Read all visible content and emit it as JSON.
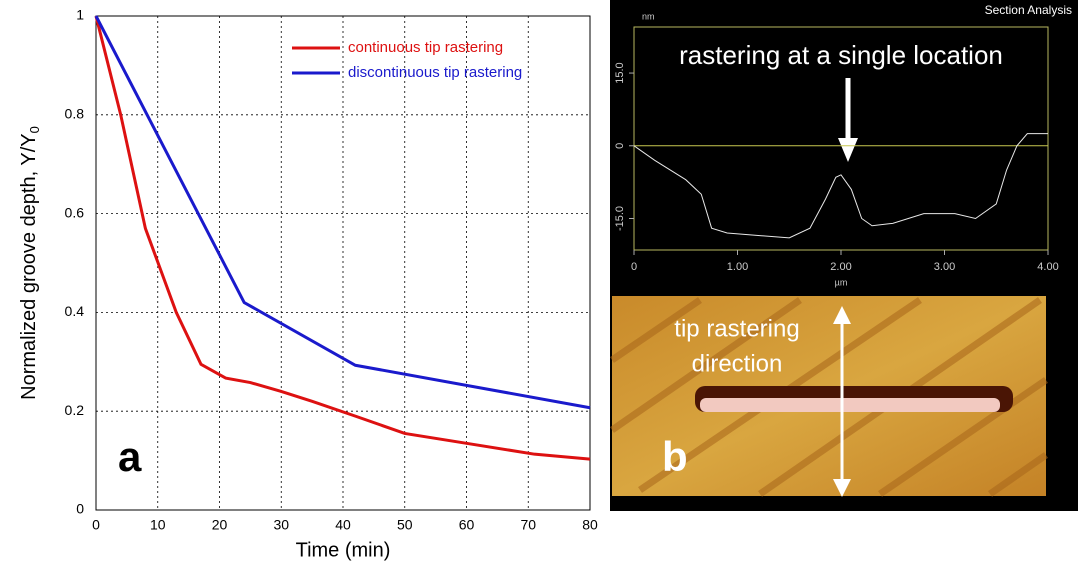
{
  "chart_data": [
    {
      "type": "line",
      "panel_label": "a",
      "xlabel": "Time (min)",
      "ylabel": "Normalized groove depth, Y/Y",
      "ylabel_subscript": "0",
      "xlim": [
        0,
        80
      ],
      "ylim": [
        0,
        1
      ],
      "xticks": [
        0,
        10,
        20,
        30,
        40,
        50,
        60,
        70,
        80
      ],
      "yticks": [
        0,
        0.2,
        0.4,
        0.6,
        0.8,
        1
      ],
      "grid": true,
      "legend": "upper right",
      "series": [
        {
          "name": "continuous tip rastering",
          "color": "#dd1111",
          "x": [
            0,
            4,
            8,
            13,
            17,
            21,
            25,
            30,
            35,
            42,
            50,
            60,
            71,
            80
          ],
          "values": [
            1,
            0.8,
            0.57,
            0.4,
            0.295,
            0.267,
            0.258,
            0.24,
            0.22,
            0.19,
            0.155,
            0.135,
            0.113,
            0.103
          ]
        },
        {
          "name": "discontinuous tip rastering",
          "color": "#1a1acc",
          "x": [
            0,
            24,
            42,
            80
          ],
          "values": [
            1,
            0.42,
            0.293,
            0.207
          ]
        }
      ]
    },
    {
      "type": "profile",
      "title": "Section Analysis",
      "ylabel": "nm",
      "xlabel": "µm",
      "annotation": "rastering at a single location",
      "xlim": [
        0,
        4
      ],
      "ylim": [
        -21.5,
        24.5
      ],
      "xticks": [
        0,
        {
          "value": 1,
          "label": "1.00"
        },
        {
          "value": 2,
          "label": "2.00"
        },
        {
          "value": 3,
          "label": "3.00"
        },
        {
          "value": 4,
          "label": "4.00"
        }
      ],
      "yticks": [
        {
          "value": -15,
          "label": "-15.0"
        },
        0,
        {
          "value": 15,
          "label": "15.0"
        }
      ],
      "color": "#e8e8e8",
      "x": [
        0,
        0.2,
        0.5,
        0.65,
        0.75,
        0.9,
        1.2,
        1.5,
        1.7,
        1.85,
        1.95,
        2.0,
        2.1,
        2.2,
        2.3,
        2.5,
        2.8,
        3.1,
        3.3,
        3.5,
        3.6,
        3.7,
        3.8,
        3.95,
        4.0
      ],
      "values": [
        0,
        -3,
        -7,
        -10,
        -17,
        -18,
        -18.5,
        -19,
        -17,
        -11,
        -6.5,
        -6,
        -9,
        -15,
        -16.5,
        -16,
        -14,
        -14,
        -15,
        -12,
        -5,
        0,
        2.5,
        2.5,
        2.5
      ]
    },
    {
      "type": "image",
      "panel_label": "b",
      "annotation": [
        "tip rastering",
        "direction"
      ]
    }
  ]
}
